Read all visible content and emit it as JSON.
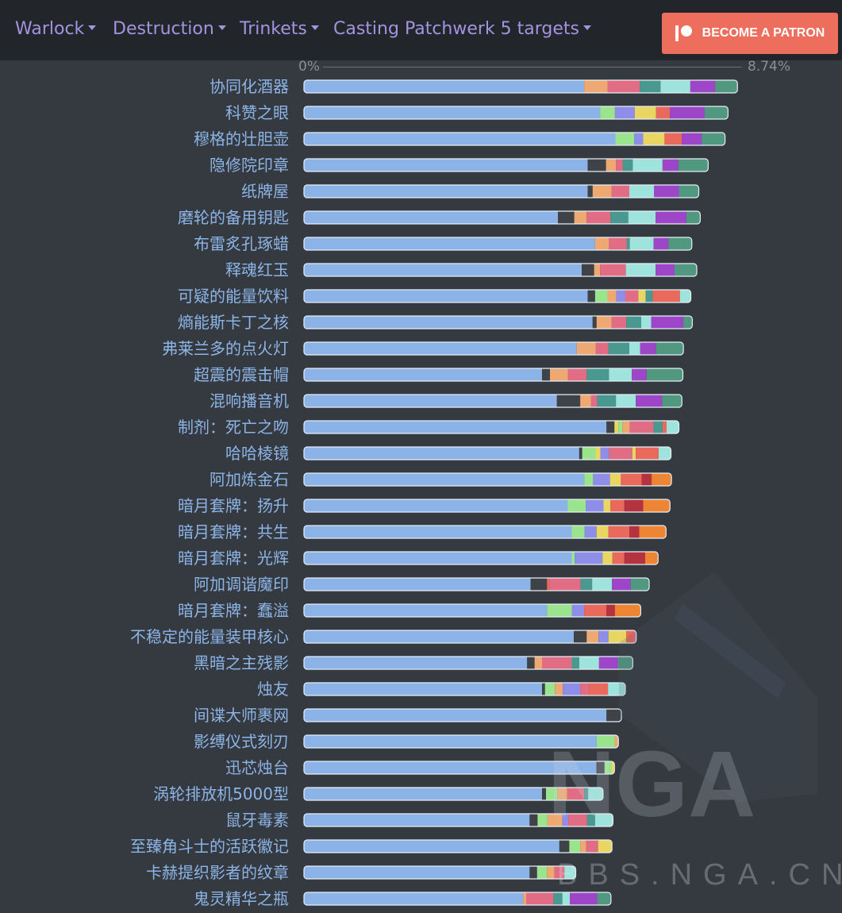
{
  "nav": {
    "class_label": "Warlock",
    "spec_label": "Destruction",
    "category_label": "Trinkets",
    "scenario_label": "Casting Patchwerk 5 targets",
    "patron_label": "BECOME A PATRON"
  },
  "watermark": {
    "logo_text": "NGA",
    "site_text": "BBS.NGA.CN"
  },
  "colors": {
    "base": "#8cb3e8",
    "dark": "#3f4247",
    "orange": "#eea871",
    "pink": "#e06d84",
    "teal": "#4a9991",
    "aqua": "#9ee3dc",
    "purple": "#9e46c8",
    "green": "#519880",
    "lightgreen": "#9ae48e",
    "lavender": "#8e8ee8",
    "yellow": "#e8d562",
    "coral": "#e96a5c",
    "red": "#b5333f",
    "deeporange": "#ee8534"
  },
  "chart_data": {
    "type": "bar",
    "orientation": "horizontal-stacked",
    "title": "",
    "xlabel": "",
    "ylabel": "",
    "x_min_label": "0%",
    "x_max_label": "8.74%",
    "xlim": [
      0,
      8.74
    ],
    "units": "% DPS increase",
    "categories": [
      "协同化酒器",
      "科赞之眼",
      "穆格的壮胆壶",
      "隐修院印章",
      "纸牌屋",
      "磨轮的备用钥匙",
      "布雷炙孔琢蜡",
      "释魂红玉",
      "可疑的能量饮料",
      "熵能斯卡丁之核",
      "弗莱兰多的点火灯",
      "超震的震击帽",
      "混响播音机",
      "制剂：死亡之吻",
      "哈哈棱镜",
      "阿加炼金石",
      "暗月套牌：扬升",
      "暗月套牌：共生",
      "暗月套牌：光辉",
      "阿加调谐魔印",
      "暗月套牌：蠢溢",
      "不稳定的能量装甲核心",
      "黑暗之主残影",
      "烛友",
      "间谍大师裹网",
      "影缚仪式刻刃",
      "迅芯烛台",
      "涡轮排放机5000型",
      "鼠牙毒素",
      "至臻角斗士的活跃徽记",
      "卡赫提织影者的纹章",
      "鬼灵精华之瓶"
    ],
    "bars": [
      [
        [
          "base",
          5.65
        ],
        [
          "orange",
          0.47
        ],
        [
          "pink",
          0.65
        ],
        [
          "teal",
          0.42
        ],
        [
          "aqua",
          0.6
        ],
        [
          "purple",
          0.5
        ],
        [
          "green",
          0.45
        ]
      ],
      [
        [
          "base",
          5.97
        ],
        [
          "lightgreen",
          0.3
        ],
        [
          "lavender",
          0.4
        ],
        [
          "yellow",
          0.43
        ],
        [
          "coral",
          0.28
        ],
        [
          "purple",
          0.7
        ],
        [
          "green",
          0.47
        ]
      ],
      [
        [
          "base",
          6.28
        ],
        [
          "lightgreen",
          0.38
        ],
        [
          "lavender",
          0.18
        ],
        [
          "yellow",
          0.43
        ],
        [
          "coral",
          0.35
        ],
        [
          "purple",
          0.4
        ],
        [
          "green",
          0.47
        ]
      ],
      [
        [
          "base",
          5.72
        ],
        [
          "dark",
          0.37
        ],
        [
          "orange",
          0.2
        ],
        [
          "pink",
          0.14
        ],
        [
          "teal",
          0.2
        ],
        [
          "aqua",
          0.6
        ],
        [
          "purple",
          0.32
        ],
        [
          "green",
          0.6
        ]
      ],
      [
        [
          "base",
          5.72
        ],
        [
          "dark",
          0.1
        ],
        [
          "orange",
          0.38
        ],
        [
          "pink",
          0.36
        ],
        [
          "aqua",
          0.5
        ],
        [
          "purple",
          0.5
        ],
        [
          "green",
          0.4
        ]
      ],
      [
        [
          "base",
          5.12
        ],
        [
          "dark",
          0.33
        ],
        [
          "orange",
          0.25
        ],
        [
          "pink",
          0.48
        ],
        [
          "teal",
          0.36
        ],
        [
          "aqua",
          0.55
        ],
        [
          "purple",
          0.62
        ],
        [
          "green",
          0.28
        ]
      ],
      [
        [
          "base",
          5.87
        ],
        [
          "orange",
          0.28
        ],
        [
          "pink",
          0.36
        ],
        [
          "teal",
          0.06
        ],
        [
          "aqua",
          0.48
        ],
        [
          "purple",
          0.3
        ],
        [
          "green",
          0.47
        ]
      ],
      [
        [
          "base",
          5.6
        ],
        [
          "dark",
          0.25
        ],
        [
          "orange",
          0.12
        ],
        [
          "pink",
          0.52
        ],
        [
          "aqua",
          0.6
        ],
        [
          "purple",
          0.38
        ],
        [
          "green",
          0.45
        ]
      ],
      [
        [
          "base",
          5.72
        ],
        [
          "dark",
          0.15
        ],
        [
          "lightgreen",
          0.25
        ],
        [
          "orange",
          0.18
        ],
        [
          "lavender",
          0.18
        ],
        [
          "pink",
          0.26
        ],
        [
          "yellow",
          0.15
        ],
        [
          "teal",
          0.14
        ],
        [
          "coral",
          0.55
        ],
        [
          "aqua",
          0.22
        ]
      ],
      [
        [
          "base",
          5.82
        ],
        [
          "dark",
          0.08
        ],
        [
          "orange",
          0.3
        ],
        [
          "pink",
          0.3
        ],
        [
          "teal",
          0.3
        ],
        [
          "aqua",
          0.2
        ],
        [
          "purple",
          0.65
        ],
        [
          "green",
          0.18
        ]
      ],
      [
        [
          "base",
          5.5
        ],
        [
          "orange",
          0.38
        ],
        [
          "pink",
          0.26
        ],
        [
          "teal",
          0.42
        ],
        [
          "aqua",
          0.22
        ],
        [
          "purple",
          0.32
        ],
        [
          "green",
          0.55
        ]
      ],
      [
        [
          "base",
          4.8
        ],
        [
          "dark",
          0.16
        ],
        [
          "orange",
          0.36
        ],
        [
          "pink",
          0.38
        ],
        [
          "teal",
          0.45
        ],
        [
          "aqua",
          0.46
        ],
        [
          "purple",
          0.3
        ],
        [
          "green",
          0.73
        ]
      ],
      [
        [
          "base",
          5.1
        ],
        [
          "dark",
          0.47
        ],
        [
          "orange",
          0.22
        ],
        [
          "pink",
          0.12
        ],
        [
          "teal",
          0.38
        ],
        [
          "aqua",
          0.4
        ],
        [
          "purple",
          0.53
        ],
        [
          "green",
          0.4
        ]
      ],
      [
        [
          "base",
          6.1
        ],
        [
          "dark",
          0.16
        ],
        [
          "yellow",
          0.08
        ],
        [
          "lightgreen",
          0.08
        ],
        [
          "orange",
          0.15
        ],
        [
          "pink",
          0.48
        ],
        [
          "teal",
          0.18
        ],
        [
          "coral",
          0.08
        ],
        [
          "aqua",
          0.25
        ]
      ],
      [
        [
          "base",
          5.55
        ],
        [
          "dark",
          0.06
        ],
        [
          "lightgreen",
          0.27
        ],
        [
          "yellow",
          0.1
        ],
        [
          "lavender",
          0.17
        ],
        [
          "pink",
          0.47
        ],
        [
          "yellow",
          0.07
        ],
        [
          "coral",
          0.46
        ],
        [
          "aqua",
          0.25
        ]
      ],
      [
        [
          "base",
          5.65
        ],
        [
          "lightgreen",
          0.18
        ],
        [
          "lavender",
          0.34
        ],
        [
          "yellow",
          0.22
        ],
        [
          "coral",
          0.42
        ],
        [
          "red",
          0.2
        ],
        [
          "deeporange",
          0.4
        ]
      ],
      [
        [
          "base",
          5.32
        ],
        [
          "lightgreen",
          0.36
        ],
        [
          "lavender",
          0.36
        ],
        [
          "yellow",
          0.14
        ],
        [
          "coral",
          0.28
        ],
        [
          "red",
          0.38
        ],
        [
          "deeporange",
          0.54
        ]
      ],
      [
        [
          "base",
          5.4
        ],
        [
          "lightgreen",
          0.26
        ],
        [
          "lavender",
          0.24
        ],
        [
          "yellow",
          0.24
        ],
        [
          "coral",
          0.42
        ],
        [
          "red",
          0.2
        ],
        [
          "deeporange",
          0.54
        ]
      ],
      [
        [
          "base",
          5.4
        ],
        [
          "lightgreen",
          0.06
        ],
        [
          "lavender",
          0.56
        ],
        [
          "yellow",
          0.2
        ],
        [
          "coral",
          0.24
        ],
        [
          "red",
          0.42
        ],
        [
          "deeporange",
          0.26
        ]
      ],
      [
        [
          "base",
          4.57
        ],
        [
          "dark",
          0.33
        ],
        [
          "coral",
          0.05
        ],
        [
          "pink",
          0.63
        ],
        [
          "teal",
          0.23
        ],
        [
          "aqua",
          0.4
        ],
        [
          "purple",
          0.38
        ],
        [
          "green",
          0.37
        ]
      ],
      [
        [
          "base",
          4.9
        ],
        [
          "lightgreen",
          0.5
        ],
        [
          "lavender",
          0.25
        ],
        [
          "coral",
          0.45
        ],
        [
          "red",
          0.17
        ],
        [
          "deeporange",
          0.52
        ]
      ],
      [
        [
          "base",
          5.44
        ],
        [
          "dark",
          0.26
        ],
        [
          "orange",
          0.24
        ],
        [
          "lavender",
          0.2
        ],
        [
          "yellow",
          0.36
        ],
        [
          "coral",
          0.14
        ],
        [
          "pink",
          0.06
        ]
      ],
      [
        [
          "base",
          4.5
        ],
        [
          "dark",
          0.15
        ],
        [
          "orange",
          0.15
        ],
        [
          "pink",
          0.6
        ],
        [
          "teal",
          0.15
        ],
        [
          "aqua",
          0.4
        ],
        [
          "purple",
          0.38
        ],
        [
          "green",
          0.3
        ]
      ],
      [
        [
          "base",
          4.8
        ],
        [
          "dark",
          0.06
        ],
        [
          "lightgreen",
          0.2
        ],
        [
          "orange",
          0.16
        ],
        [
          "lavender",
          0.35
        ],
        [
          "pink",
          0.18
        ],
        [
          "coral",
          0.38
        ],
        [
          "aqua",
          0.35
        ]
      ],
      [
        [
          "base",
          6.1
        ],
        [
          "dark",
          0.3
        ]
      ],
      [
        [
          "base",
          5.9
        ],
        [
          "lightgreen",
          0.37
        ],
        [
          "orange",
          0.07
        ]
      ],
      [
        [
          "base",
          5.9
        ],
        [
          "dark",
          0.16
        ],
        [
          "lightgreen",
          0.14
        ],
        [
          "yellow",
          0.06
        ]
      ],
      [
        [
          "base",
          4.8
        ],
        [
          "dark",
          0.08
        ],
        [
          "lightgreen",
          0.23
        ],
        [
          "orange",
          0.2
        ],
        [
          "pink",
          0.34
        ],
        [
          "teal",
          0.08
        ],
        [
          "aqua",
          0.3
        ]
      ],
      [
        [
          "base",
          4.55
        ],
        [
          "dark",
          0.16
        ],
        [
          "lightgreen",
          0.2
        ],
        [
          "orange",
          0.3
        ],
        [
          "lavender",
          0.12
        ],
        [
          "pink",
          0.38
        ],
        [
          "teal",
          0.16
        ],
        [
          "aqua",
          0.36
        ]
      ],
      [
        [
          "base",
          5.15
        ],
        [
          "dark",
          0.2
        ],
        [
          "lightgreen",
          0.22
        ],
        [
          "orange",
          0.12
        ],
        [
          "pink",
          0.24
        ],
        [
          "yellow",
          0.28
        ]
      ],
      [
        [
          "base",
          4.55
        ],
        [
          "dark",
          0.15
        ],
        [
          "lightgreen",
          0.2
        ],
        [
          "orange",
          0.15
        ],
        [
          "pink",
          0.2
        ],
        [
          "aqua",
          0.23
        ]
      ],
      [
        [
          "base",
          4.42
        ],
        [
          "orange",
          0.06
        ],
        [
          "pink",
          0.55
        ],
        [
          "teal",
          0.18
        ],
        [
          "aqua",
          0.15
        ],
        [
          "purple",
          0.55
        ],
        [
          "green",
          0.28
        ]
      ]
    ]
  }
}
